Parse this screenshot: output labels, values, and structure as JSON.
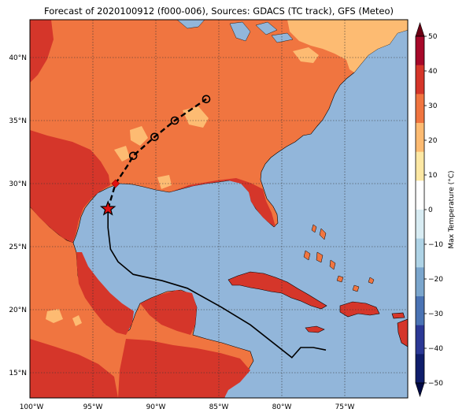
{
  "title": "Forecast of 2020100912 (f000-006), Sources: GDACS (TC track), GFS (Meteo)",
  "map": {
    "lon_range": [
      -100,
      -70
    ],
    "lat_range": [
      13,
      43
    ],
    "grid": true,
    "x_ticks": [
      "100°W",
      "95°W",
      "90°W",
      "85°W",
      "80°W",
      "75°W"
    ],
    "y_ticks": [
      "15°N",
      "20°N",
      "25°N",
      "30°N",
      "35°N",
      "40°N"
    ],
    "colors": {
      "ocean": "#92b6da",
      "temp_20_30": "#f07540",
      "temp_30_40": "#d5362a",
      "temp_10_20": "#fdbb72",
      "coast": "#000000"
    }
  },
  "colorbar": {
    "label": "Max Temperature (°C)",
    "ticks": [
      "50",
      "40",
      "30",
      "20",
      "10",
      "0",
      "−10",
      "−20",
      "−30",
      "−40",
      "−50"
    ],
    "colors": [
      "#a7092a",
      "#d5362a",
      "#f07540",
      "#fdbb72",
      "#fde8a4",
      "#ffffff",
      "#d8ecf3",
      "#aed3e6",
      "#7ba6cd",
      "#4a73b4",
      "#2b3895",
      "#0f1d6b"
    ]
  },
  "track": {
    "observed": [
      {
        "lon": -76.5,
        "lat": 16.8
      },
      {
        "lon": -77.5,
        "lat": 17.0
      },
      {
        "lon": -78.5,
        "lat": 17.0
      },
      {
        "lon": -79.2,
        "lat": 16.2
      },
      {
        "lon": -82.5,
        "lat": 18.8
      },
      {
        "lon": -84.8,
        "lat": 20.2
      },
      {
        "lon": -87.5,
        "lat": 21.7
      },
      {
        "lon": -89.5,
        "lat": 22.3
      },
      {
        "lon": -91.8,
        "lat": 22.8
      },
      {
        "lon": -93.0,
        "lat": 23.8
      },
      {
        "lon": -93.6,
        "lat": 24.8
      },
      {
        "lon": -93.8,
        "lat": 26.5
      },
      {
        "lon": -93.8,
        "lat": 28.0
      }
    ],
    "current": {
      "lon": -93.8,
      "lat": 28.0
    },
    "forecast": [
      {
        "lon": -93.8,
        "lat": 28.0
      },
      {
        "lon": -93.2,
        "lat": 30.0
      },
      {
        "lon": -92.2,
        "lat": 31.5
      },
      {
        "lon": -91.8,
        "lat": 32.2
      },
      {
        "lon": -90.1,
        "lat": 33.7
      },
      {
        "lon": -88.5,
        "lat": 35.0
      },
      {
        "lon": -86.0,
        "lat": 36.7
      }
    ],
    "forecast_points": [
      {
        "lon": -91.8,
        "lat": 32.2
      },
      {
        "lon": -90.1,
        "lat": 33.7
      },
      {
        "lon": -88.5,
        "lat": 35.0
      },
      {
        "lon": -86.0,
        "lat": 36.7
      }
    ],
    "landfall": {
      "lon": -93.2,
      "lat": 30.0
    }
  }
}
